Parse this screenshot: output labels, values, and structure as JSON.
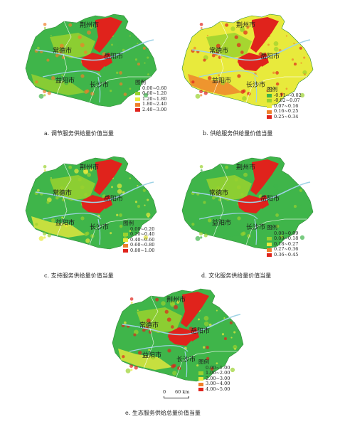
{
  "legend_title": "图例",
  "cities": {
    "yueyang": "岳阳市",
    "changde": "常德市",
    "yiyang": "益阳市",
    "changsha": "长沙市",
    "jingzhou": "荆州市"
  },
  "panels": [
    {
      "caption": "a. 调节服务供给量价值当量",
      "legend": [
        "0.00~0.60",
        "0.60~1.20",
        "1.20~1.80",
        "1.80~2.40",
        "2.40~3.00"
      ],
      "colors": [
        "#3fb54a",
        "#9ad22e",
        "#e8ea3c",
        "#ef7f2a",
        "#e0231c"
      ]
    },
    {
      "caption": "b. 供给服务供给量价值当量",
      "legend": [
        "-0.11~-0.02",
        "-0.02~0.07",
        "0.07~0.16",
        "0.16~0.25",
        "0.25~0.34"
      ],
      "colors": [
        "#3fb54a",
        "#9ad22e",
        "#e8ea3c",
        "#ef7f2a",
        "#e0231c"
      ]
    },
    {
      "caption": "c. 支持服务供给量价值当量",
      "legend": [
        "0.00~0.20",
        "0.20~0.40",
        "0.40~0.60",
        "0.60~0.80",
        "0.80~1.00"
      ],
      "colors": [
        "#3fb54a",
        "#9ad22e",
        "#e8ea3c",
        "#ef7f2a",
        "#e0231c"
      ]
    },
    {
      "caption": "d. 文化服务供给量价值当量",
      "legend": [
        "0.00~0.09",
        "0.09~0.18",
        "0.18~0.27",
        "0.27~0.36",
        "0.36~0.45"
      ],
      "colors": [
        "#3fb54a",
        "#9ad22e",
        "#e8ea3c",
        "#ef7f2a",
        "#e0231c"
      ]
    },
    {
      "caption": "e. 生态服务供给总量价值当量",
      "legend": [
        "0.00~1.00",
        "1.00~2.00",
        "2.00~3.00",
        "3.00~4.00",
        "4.00~5.00"
      ],
      "colors": [
        "#3fb54a",
        "#9ad22e",
        "#e8ea3c",
        "#ef7f2a",
        "#e0231c"
      ]
    }
  ],
  "scale": {
    "zero": "0",
    "distance": "60 km"
  },
  "colors": {
    "river": "#9fd3e6",
    "lake": "#e0231c",
    "boundary": "#ffffff"
  }
}
